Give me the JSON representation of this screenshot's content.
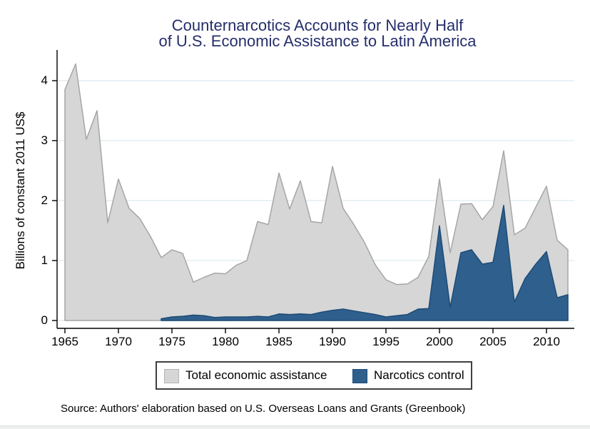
{
  "title": {
    "line1": "Counternarcotics Accounts for Nearly Half",
    "line2": "of U.S. Economic Assistance to Latin America",
    "color": "#252e6b"
  },
  "axes": {
    "y_label": "Billions of constant 2011 US$",
    "y_ticks": [
      "0",
      "1",
      "2",
      "3",
      "4"
    ],
    "x_ticks": [
      "1965",
      "1970",
      "1975",
      "1980",
      "1985",
      "1990",
      "1995",
      "2000",
      "2005",
      "2010"
    ]
  },
  "legend": {
    "items": [
      {
        "label": "Total economic assistance",
        "color": "#d6d6d6",
        "border": "#b3b3b3"
      },
      {
        "label": "Narcotics control",
        "color": "#2f608d",
        "border": "#1c4b77"
      }
    ]
  },
  "source_note": "Source: Authors' elaboration based on U.S. Overseas Loans and Grants (Greenbook)",
  "colors": {
    "title": "#252e6b",
    "gray_fill": "#d6d6d6",
    "gray_stroke": "#a6a6a6",
    "blue_fill": "#2f608d",
    "blue_stroke": "#1c4b77",
    "gridline": "#e3edf3",
    "axis": "#000000"
  },
  "chart_data": {
    "type": "area",
    "title": "Counternarcotics Accounts for Nearly Half of U.S. Economic Assistance to Latin America",
    "xlabel": "",
    "ylabel": "Billions of constant 2011 US$",
    "x_tick_years": [
      1965,
      1970,
      1975,
      1980,
      1985,
      1990,
      1995,
      2000,
      2005,
      2010
    ],
    "y_tick_values": [
      0,
      1,
      2,
      3,
      4
    ],
    "xlim": [
      1964.3,
      2012.6
    ],
    "ylim": [
      0,
      4.5
    ],
    "grid": true,
    "legend_position": "bottom",
    "series": [
      {
        "name": "Total economic assistance",
        "start_year": 1965,
        "end_year": 2012,
        "values": [
          3.85,
          4.28,
          3.02,
          3.5,
          1.63,
          2.36,
          1.87,
          1.7,
          1.4,
          1.05,
          1.18,
          1.12,
          0.64,
          0.72,
          0.79,
          0.78,
          0.92,
          1.0,
          1.65,
          1.6,
          2.46,
          1.86,
          2.33,
          1.65,
          1.63,
          2.57,
          1.87,
          1.6,
          1.3,
          0.93,
          0.68,
          0.6,
          0.61,
          0.72,
          1.07,
          2.36,
          1.13,
          1.94,
          1.95,
          1.68,
          1.9,
          2.83,
          1.43,
          1.54,
          1.89,
          2.24,
          1.34,
          1.18
        ]
      },
      {
        "name": "Narcotics control",
        "start_year": 1974,
        "end_year": 2012,
        "values": [
          0.03,
          0.06,
          0.07,
          0.09,
          0.08,
          0.05,
          0.06,
          0.06,
          0.06,
          0.07,
          0.06,
          0.11,
          0.1,
          0.11,
          0.1,
          0.14,
          0.17,
          0.19,
          0.16,
          0.13,
          0.1,
          0.06,
          0.08,
          0.1,
          0.19,
          0.2,
          1.58,
          0.22,
          1.13,
          1.18,
          0.94,
          0.97,
          1.92,
          0.31,
          0.7,
          0.94,
          1.15,
          0.38,
          0.43
        ]
      }
    ]
  }
}
